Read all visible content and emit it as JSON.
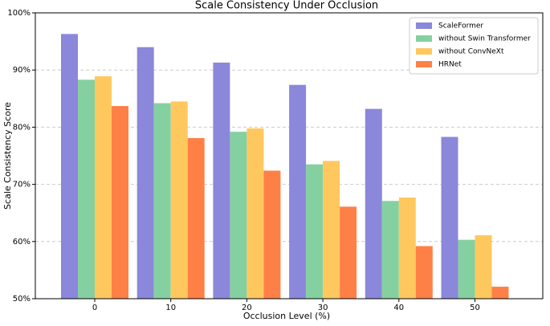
{
  "chart_data": {
    "type": "bar",
    "title": "Scale Consistency Under Occlusion",
    "x_label": "Occlusion Level (%)",
    "y_label": "Scale Consistency Score",
    "categories": [
      "0",
      "10",
      "20",
      "30",
      "40",
      "50"
    ],
    "series": [
      {
        "name": "ScaleFormer",
        "color": "#8b87db",
        "values": [
          96.3,
          94.0,
          91.3,
          87.4,
          83.2,
          78.3
        ]
      },
      {
        "name": "without Swin Transformer",
        "color": "#85d0a0",
        "values": [
          88.3,
          84.2,
          79.2,
          73.5,
          67.1,
          60.3
        ]
      },
      {
        "name": "without ConvNeXt",
        "color": "#ffc85e",
        "values": [
          88.9,
          84.5,
          79.8,
          74.1,
          67.7,
          61.1
        ]
      },
      {
        "name": "HRNet",
        "color": "#ff8047",
        "values": [
          83.7,
          78.1,
          72.4,
          66.1,
          59.2,
          52.1
        ]
      }
    ],
    "ylim": [
      50,
      100
    ],
    "yticks": [
      {
        "value": 50,
        "label": "50%"
      },
      {
        "value": 60,
        "label": "60%"
      },
      {
        "value": 70,
        "label": "70%"
      },
      {
        "value": 80,
        "label": "80%"
      },
      {
        "value": 90,
        "label": "90%"
      },
      {
        "value": 100,
        "label": "100%"
      }
    ],
    "grid": true,
    "legend": "upper right"
  }
}
